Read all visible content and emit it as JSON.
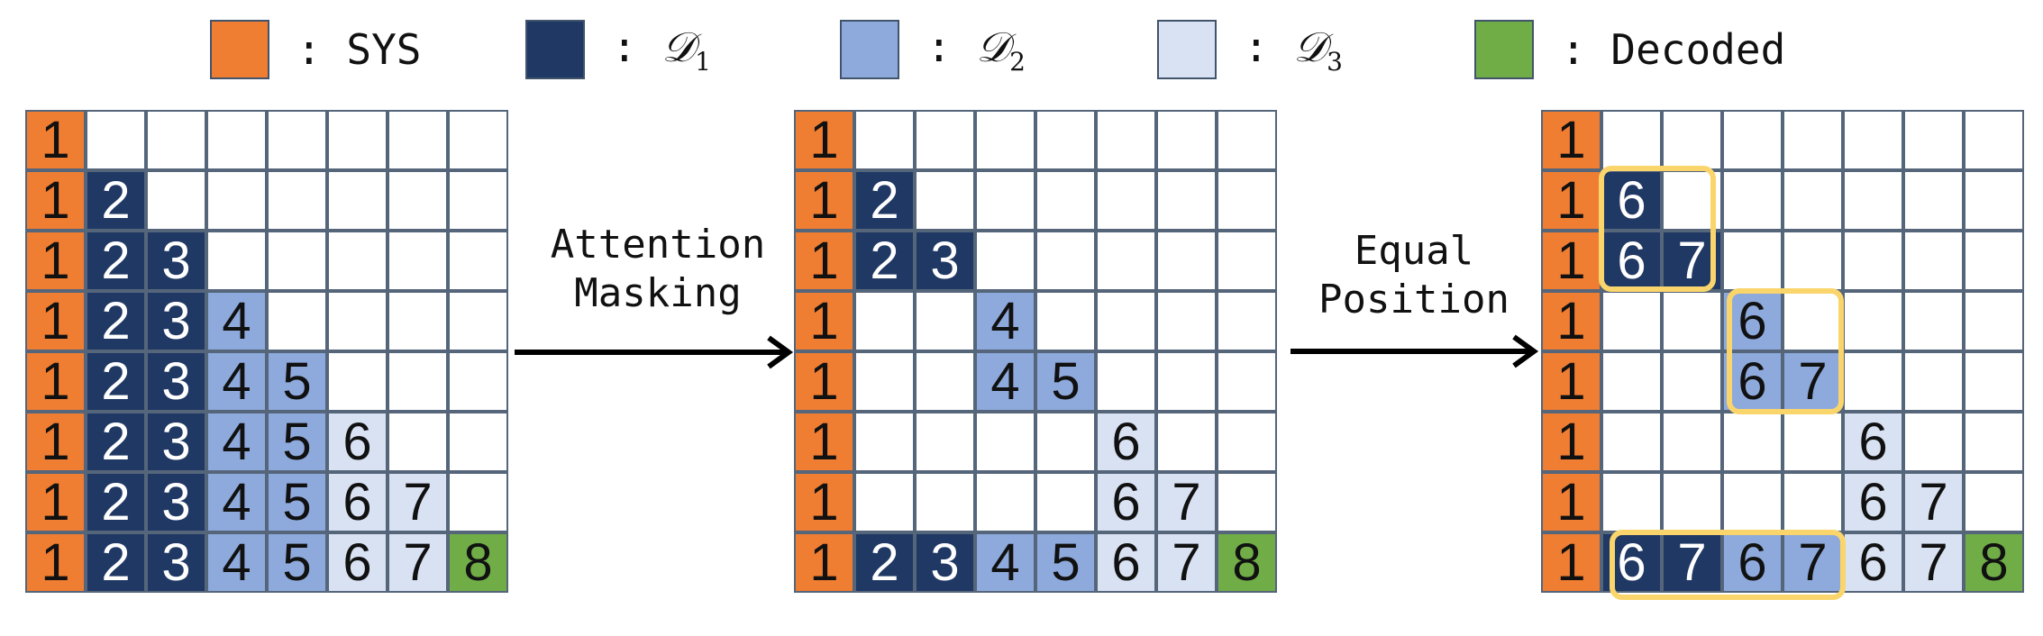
{
  "colors": {
    "SYS": "#ef7d32",
    "D1": "#203864",
    "D2": "#8eaadc",
    "D3": "#d9e2f3",
    "Decoded": "#70ad47",
    "empty": "#ffffff",
    "highlight": "#f9d56b"
  },
  "legend": [
    {
      "key": "SYS",
      "label": "SYS",
      "sub": ""
    },
    {
      "key": "D1",
      "label": "𝒟",
      "sub": "1"
    },
    {
      "key": "D2",
      "label": "𝒟",
      "sub": "2"
    },
    {
      "key": "D3",
      "label": "𝒟",
      "sub": "3"
    },
    {
      "key": "Decoded",
      "label": "Decoded",
      "sub": ""
    }
  ],
  "legend_separator": ":",
  "arrows": [
    {
      "label_line1": "Attention",
      "label_line2": "Masking"
    },
    {
      "label_line1": "Equal",
      "label_line2": "Position"
    }
  ],
  "matrices": [
    {
      "rows": [
        [
          [
            "1",
            "SYS"
          ],
          [
            "",
            ""
          ],
          [
            "",
            ""
          ],
          [
            "",
            ""
          ],
          [
            "",
            ""
          ],
          [
            "",
            ""
          ],
          [
            "",
            ""
          ],
          [
            "",
            ""
          ]
        ],
        [
          [
            "1",
            "SYS"
          ],
          [
            "2",
            "D1"
          ],
          [
            "",
            ""
          ],
          [
            "",
            ""
          ],
          [
            "",
            ""
          ],
          [
            "",
            ""
          ],
          [
            "",
            ""
          ],
          [
            "",
            ""
          ]
        ],
        [
          [
            "1",
            "SYS"
          ],
          [
            "2",
            "D1"
          ],
          [
            "3",
            "D1"
          ],
          [
            "",
            ""
          ],
          [
            "",
            ""
          ],
          [
            "",
            ""
          ],
          [
            "",
            ""
          ],
          [
            "",
            ""
          ]
        ],
        [
          [
            "1",
            "SYS"
          ],
          [
            "2",
            "D1"
          ],
          [
            "3",
            "D1"
          ],
          [
            "4",
            "D2"
          ],
          [
            "",
            ""
          ],
          [
            "",
            ""
          ],
          [
            "",
            ""
          ],
          [
            "",
            ""
          ]
        ],
        [
          [
            "1",
            "SYS"
          ],
          [
            "2",
            "D1"
          ],
          [
            "3",
            "D1"
          ],
          [
            "4",
            "D2"
          ],
          [
            "5",
            "D2"
          ],
          [
            "",
            ""
          ],
          [
            "",
            ""
          ],
          [
            "",
            ""
          ]
        ],
        [
          [
            "1",
            "SYS"
          ],
          [
            "2",
            "D1"
          ],
          [
            "3",
            "D1"
          ],
          [
            "4",
            "D2"
          ],
          [
            "5",
            "D2"
          ],
          [
            "6",
            "D3"
          ],
          [
            "",
            ""
          ],
          [
            "",
            ""
          ]
        ],
        [
          [
            "1",
            "SYS"
          ],
          [
            "2",
            "D1"
          ],
          [
            "3",
            "D1"
          ],
          [
            "4",
            "D2"
          ],
          [
            "5",
            "D2"
          ],
          [
            "6",
            "D3"
          ],
          [
            "7",
            "D3"
          ],
          [
            "",
            ""
          ]
        ],
        [
          [
            "1",
            "SYS"
          ],
          [
            "2",
            "D1"
          ],
          [
            "3",
            "D1"
          ],
          [
            "4",
            "D2"
          ],
          [
            "5",
            "D2"
          ],
          [
            "6",
            "D3"
          ],
          [
            "7",
            "D3"
          ],
          [
            "8",
            "Decoded"
          ]
        ]
      ]
    },
    {
      "rows": [
        [
          [
            "1",
            "SYS"
          ],
          [
            "",
            ""
          ],
          [
            "",
            ""
          ],
          [
            "",
            ""
          ],
          [
            "",
            ""
          ],
          [
            "",
            ""
          ],
          [
            "",
            ""
          ],
          [
            "",
            ""
          ]
        ],
        [
          [
            "1",
            "SYS"
          ],
          [
            "2",
            "D1"
          ],
          [
            "",
            ""
          ],
          [
            "",
            ""
          ],
          [
            "",
            ""
          ],
          [
            "",
            ""
          ],
          [
            "",
            ""
          ],
          [
            "",
            ""
          ]
        ],
        [
          [
            "1",
            "SYS"
          ],
          [
            "2",
            "D1"
          ],
          [
            "3",
            "D1"
          ],
          [
            "",
            ""
          ],
          [
            "",
            ""
          ],
          [
            "",
            ""
          ],
          [
            "",
            ""
          ],
          [
            "",
            ""
          ]
        ],
        [
          [
            "1",
            "SYS"
          ],
          [
            "",
            ""
          ],
          [
            "",
            ""
          ],
          [
            "4",
            "D2"
          ],
          [
            "",
            ""
          ],
          [
            "",
            ""
          ],
          [
            "",
            ""
          ],
          [
            "",
            ""
          ]
        ],
        [
          [
            "1",
            "SYS"
          ],
          [
            "",
            ""
          ],
          [
            "",
            ""
          ],
          [
            "4",
            "D2"
          ],
          [
            "5",
            "D2"
          ],
          [
            "",
            ""
          ],
          [
            "",
            ""
          ],
          [
            "",
            ""
          ]
        ],
        [
          [
            "1",
            "SYS"
          ],
          [
            "",
            ""
          ],
          [
            "",
            ""
          ],
          [
            "",
            ""
          ],
          [
            "",
            ""
          ],
          [
            "6",
            "D3"
          ],
          [
            "",
            ""
          ],
          [
            "",
            ""
          ]
        ],
        [
          [
            "1",
            "SYS"
          ],
          [
            "",
            ""
          ],
          [
            "",
            ""
          ],
          [
            "",
            ""
          ],
          [
            "",
            ""
          ],
          [
            "6",
            "D3"
          ],
          [
            "7",
            "D3"
          ],
          [
            "",
            ""
          ]
        ],
        [
          [
            "1",
            "SYS"
          ],
          [
            "2",
            "D1"
          ],
          [
            "3",
            "D1"
          ],
          [
            "4",
            "D2"
          ],
          [
            "5",
            "D2"
          ],
          [
            "6",
            "D3"
          ],
          [
            "7",
            "D3"
          ],
          [
            "8",
            "Decoded"
          ]
        ]
      ]
    },
    {
      "rows": [
        [
          [
            "1",
            "SYS"
          ],
          [
            "",
            ""
          ],
          [
            "",
            ""
          ],
          [
            "",
            ""
          ],
          [
            "",
            ""
          ],
          [
            "",
            ""
          ],
          [
            "",
            ""
          ],
          [
            "",
            ""
          ]
        ],
        [
          [
            "1",
            "SYS"
          ],
          [
            "6",
            "D1"
          ],
          [
            "",
            ""
          ],
          [
            "",
            ""
          ],
          [
            "",
            ""
          ],
          [
            "",
            ""
          ],
          [
            "",
            ""
          ],
          [
            "",
            ""
          ]
        ],
        [
          [
            "1",
            "SYS"
          ],
          [
            "6",
            "D1"
          ],
          [
            "7",
            "D1"
          ],
          [
            "",
            ""
          ],
          [
            "",
            ""
          ],
          [
            "",
            ""
          ],
          [
            "",
            ""
          ],
          [
            "",
            ""
          ]
        ],
        [
          [
            "1",
            "SYS"
          ],
          [
            "",
            ""
          ],
          [
            "",
            ""
          ],
          [
            "6",
            "D2"
          ],
          [
            "",
            ""
          ],
          [
            "",
            ""
          ],
          [
            "",
            ""
          ],
          [
            "",
            ""
          ]
        ],
        [
          [
            "1",
            "SYS"
          ],
          [
            "",
            ""
          ],
          [
            "",
            ""
          ],
          [
            "6",
            "D2"
          ],
          [
            "7",
            "D2"
          ],
          [
            "",
            ""
          ],
          [
            "",
            ""
          ],
          [
            "",
            ""
          ]
        ],
        [
          [
            "1",
            "SYS"
          ],
          [
            "",
            ""
          ],
          [
            "",
            ""
          ],
          [
            "",
            ""
          ],
          [
            "",
            ""
          ],
          [
            "6",
            "D3"
          ],
          [
            "",
            ""
          ],
          [
            "",
            ""
          ]
        ],
        [
          [
            "1",
            "SYS"
          ],
          [
            "",
            ""
          ],
          [
            "",
            ""
          ],
          [
            "",
            ""
          ],
          [
            "",
            ""
          ],
          [
            "6",
            "D3"
          ],
          [
            "7",
            "D3"
          ],
          [
            "",
            ""
          ]
        ],
        [
          [
            "1",
            "SYS"
          ],
          [
            "6",
            "D1"
          ],
          [
            "7",
            "D1"
          ],
          [
            "6",
            "D2"
          ],
          [
            "7",
            "D2"
          ],
          [
            "6",
            "D3"
          ],
          [
            "7",
            "D3"
          ],
          [
            "8",
            "Decoded"
          ]
        ]
      ]
    }
  ]
}
